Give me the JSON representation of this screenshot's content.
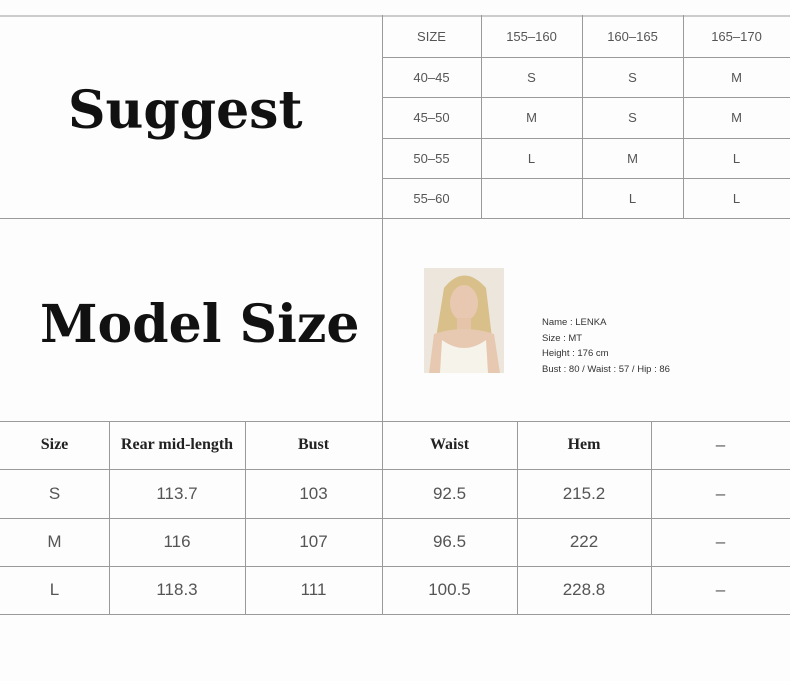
{
  "suggest": {
    "title": "Suggest",
    "headers": [
      "SIZE",
      "155–160",
      "160–165",
      "165–170"
    ],
    "rows": [
      [
        "40–45",
        "S",
        "S",
        "M"
      ],
      [
        "45–50",
        "M",
        "S",
        "M"
      ],
      [
        "50–55",
        "L",
        "M",
        "L"
      ],
      [
        "55–60",
        "",
        "L",
        "L"
      ]
    ]
  },
  "model": {
    "title": "Model Size",
    "info": [
      "Name : LENKA",
      "Size : MT",
      "Height : 176 cm",
      "Bust : 80 / Waist : 57 / Hip : 86"
    ]
  },
  "measurements": {
    "headers": [
      "Size",
      "Rear mid-length",
      "Bust",
      "Waist",
      "Hem",
      "–"
    ],
    "rows": [
      [
        "S",
        "113.7",
        "103",
        "92.5",
        "215.2",
        "–"
      ],
      [
        "M",
        "116",
        "107",
        "96.5",
        "222",
        "–"
      ],
      [
        "L",
        "118.3",
        "111",
        "100.5",
        "228.8",
        "–"
      ]
    ]
  }
}
